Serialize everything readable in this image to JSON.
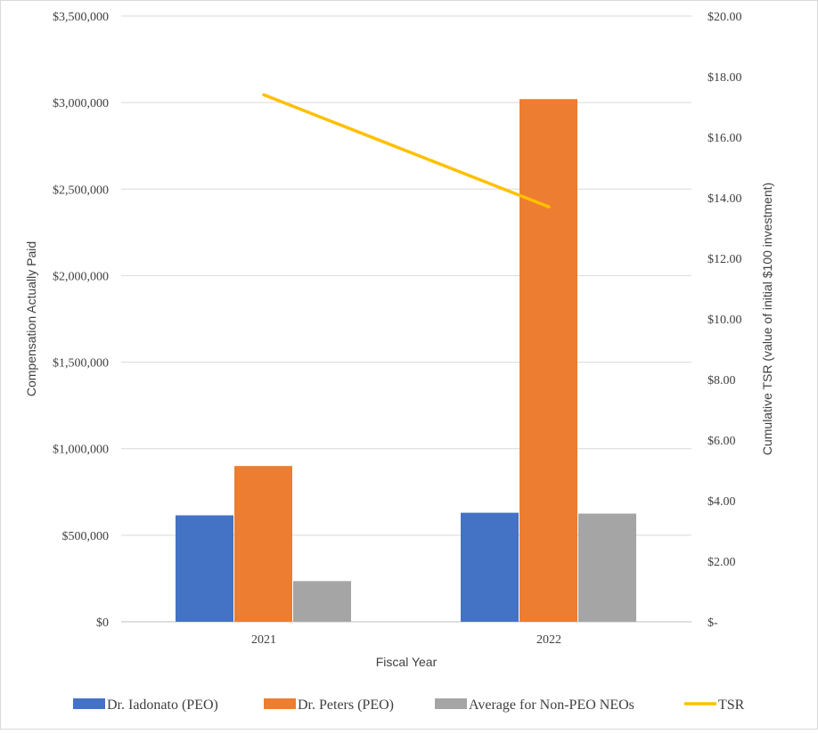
{
  "chart_data": {
    "type": "bar",
    "categories": [
      "2021",
      "2022"
    ],
    "xlabel": "Fiscal Year",
    "ylabel": "Compensation Actually Paid",
    "y2label": "Cumulative TSR (value of initial $100 investment)",
    "ylim": [
      0,
      3500000
    ],
    "y2lim": [
      0,
      20
    ],
    "yticks": [
      "$0",
      "$500,000",
      "$1,000,000",
      "$1,500,000",
      "$2,000,000",
      "$2,500,000",
      "$3,000,000",
      "$3,500,000"
    ],
    "y2ticks": [
      "$-",
      "$2.00",
      "$4.00",
      "$6.00",
      "$8.00",
      "$10.00",
      "$12.00",
      "$14.00",
      "$16.00",
      "$18.00",
      "$20.00"
    ],
    "grid": true,
    "legend_position": "bottom",
    "series": [
      {
        "name": "Dr. Iadonato (PEO)",
        "type": "bar",
        "axis": "left",
        "color": "#4472C4",
        "values": [
          615000,
          630000
        ]
      },
      {
        "name": "Dr. Peters (PEO)",
        "type": "bar",
        "axis": "left",
        "color": "#ED7D31",
        "values": [
          900000,
          3020000
        ]
      },
      {
        "name": "Average for Non-PEO NEOs",
        "type": "bar",
        "axis": "left",
        "color": "#A5A5A5",
        "values": [
          235000,
          625000
        ]
      },
      {
        "name": "TSR",
        "type": "line",
        "axis": "right",
        "color": "#FFC000",
        "values": [
          17.4,
          13.7
        ]
      }
    ]
  }
}
